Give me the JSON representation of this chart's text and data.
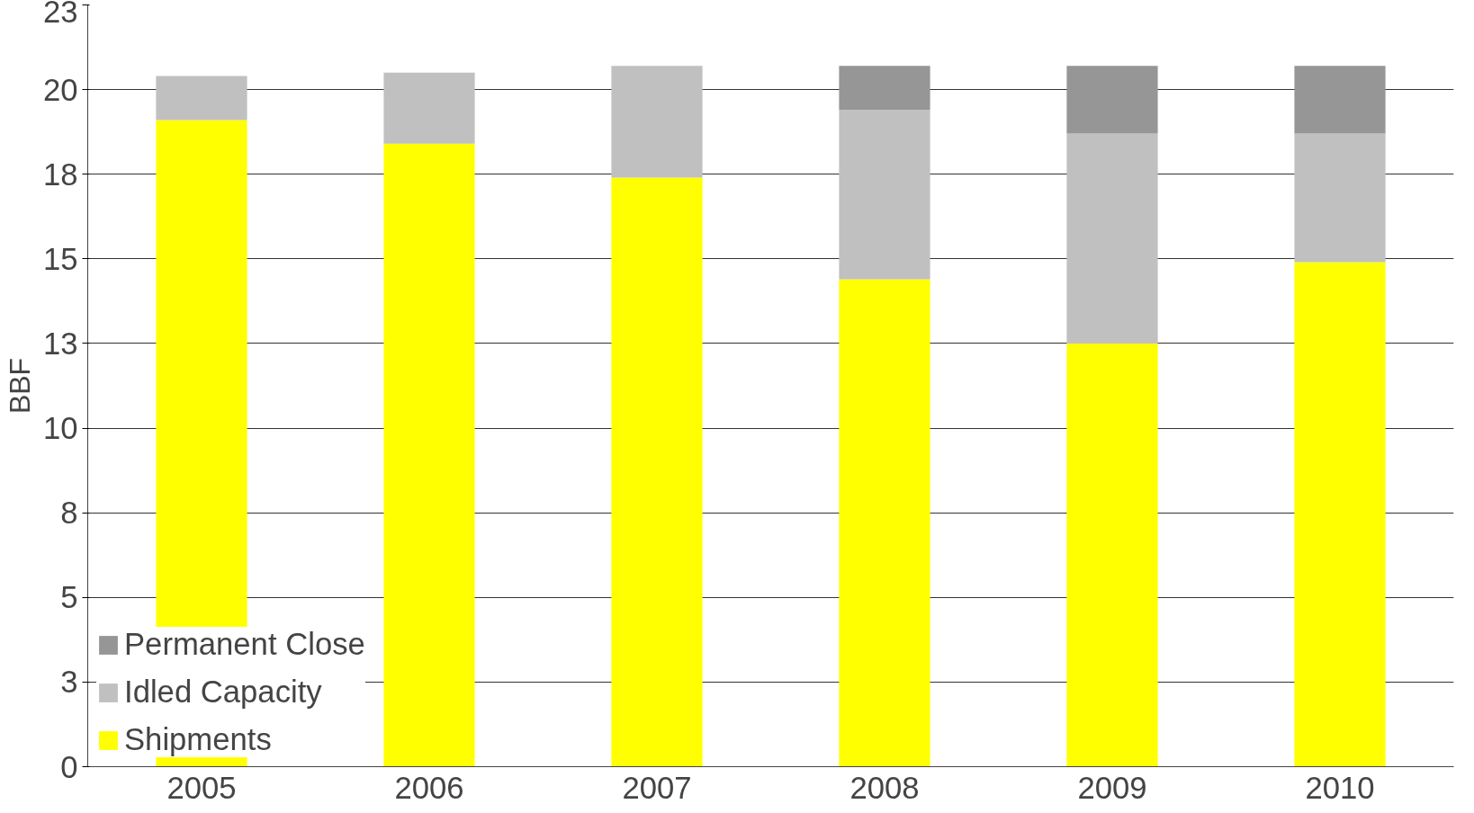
{
  "chart_data": {
    "type": "bar",
    "stacked": true,
    "ylabel": "BBF",
    "categories": [
      "2005",
      "2006",
      "2007",
      "2008",
      "2009",
      "2010"
    ],
    "series": [
      {
        "name": "Shipments",
        "color": "#ffff00",
        "values": [
          19.1,
          18.4,
          17.4,
          14.4,
          12.5,
          14.9
        ]
      },
      {
        "name": "Idled Capacity",
        "color": "#c0c0c0",
        "values": [
          1.3,
          2.1,
          3.3,
          5.0,
          6.2,
          3.8
        ]
      },
      {
        "name": "Permanent Close",
        "color": "#969696",
        "values": [
          0,
          0,
          0,
          1.3,
          2.0,
          2.0
        ]
      }
    ],
    "ylim": [
      0,
      22.5
    ],
    "yticks": [
      0,
      {
        "value": 2.5,
        "label": "3"
      },
      5,
      {
        "value": 7.5,
        "label": "8"
      },
      10,
      {
        "value": 12.5,
        "label": "13"
      },
      15,
      {
        "value": 17.5,
        "label": "18"
      },
      20,
      {
        "value": 22.5,
        "label": "23"
      }
    ],
    "grid": "y",
    "legend": "bottom left"
  }
}
